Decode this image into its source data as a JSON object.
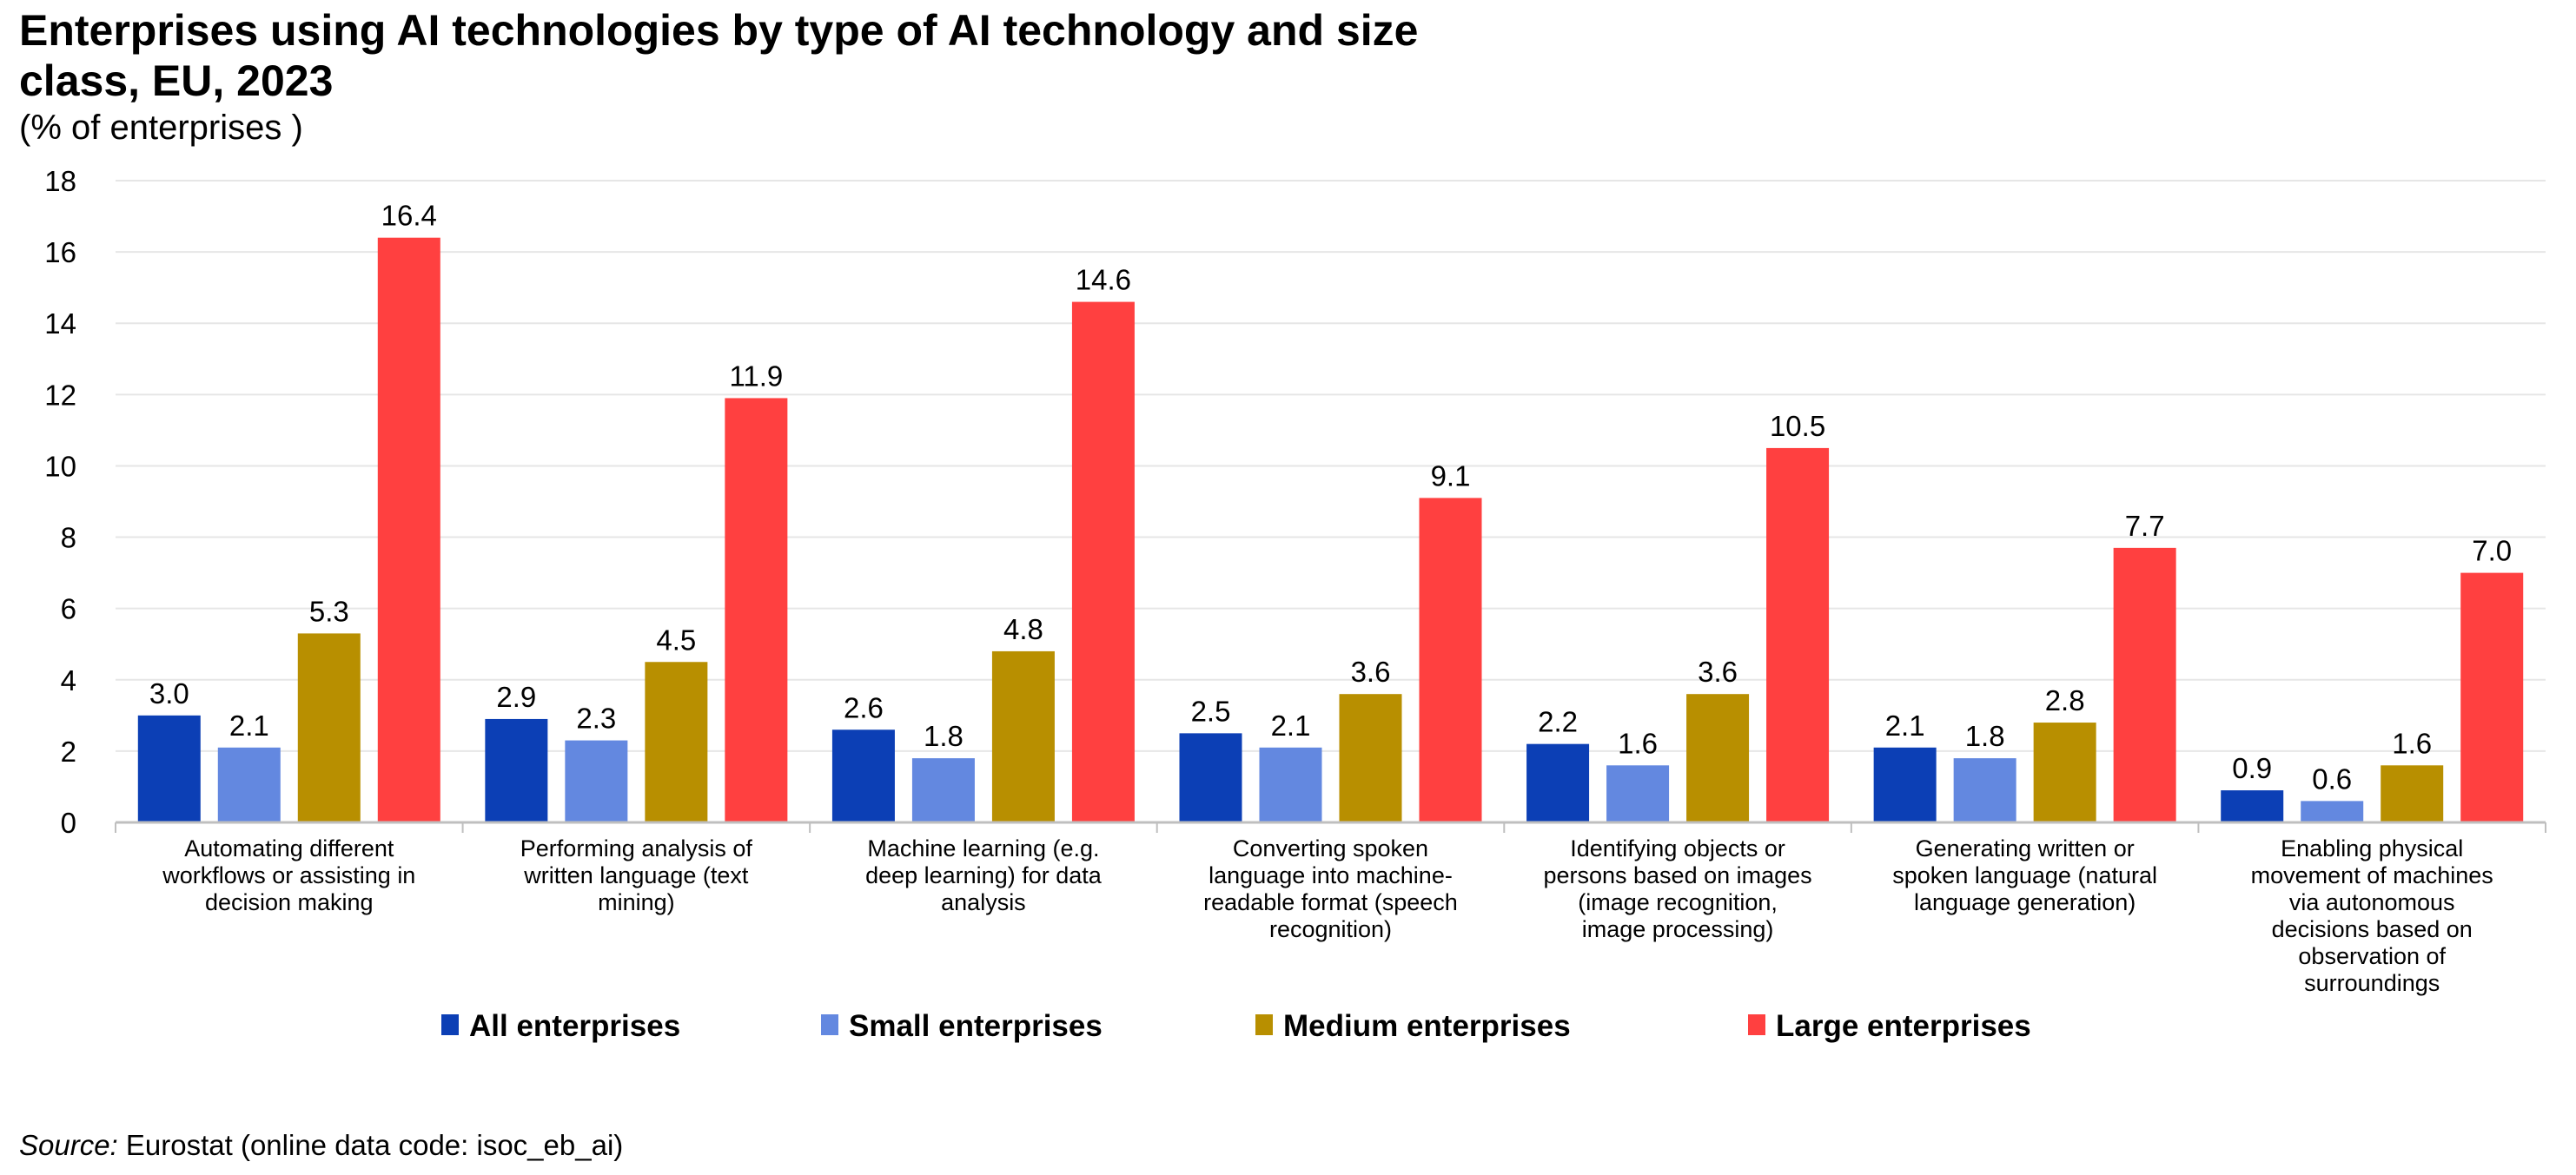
{
  "chart_data": {
    "type": "bar",
    "title_lines": [
      "Enterprises using AI technologies by type of AI technology and size",
      "class, EU, 2023"
    ],
    "subtitle": "(% of enterprises )",
    "xlabel": "",
    "ylabel": "",
    "ylim": [
      0,
      18
    ],
    "yticks": [
      0,
      2,
      4,
      6,
      8,
      10,
      12,
      14,
      16,
      18
    ],
    "grid": true,
    "legend_position": "bottom",
    "categories": [
      [
        "Automating different",
        "workflows or assisting in",
        "decision making"
      ],
      [
        "Performing analysis of",
        "written language (text",
        "mining)"
      ],
      [
        "Machine learning (e.g.",
        "deep learning) for data",
        "analysis"
      ],
      [
        "Converting spoken",
        "language into machine-",
        "readable format (speech",
        "recognition)"
      ],
      [
        "Identifying objects or",
        "persons based on images",
        "(image recognition,",
        "image processing)"
      ],
      [
        "Generating written or",
        "spoken language (natural",
        "language generation)"
      ],
      [
        "Enabling physical",
        "movement of machines",
        "via autonomous",
        "decisions based on",
        "observation of",
        "surroundings"
      ]
    ],
    "series": [
      {
        "name": "All enterprises",
        "color": "#0c3fb5",
        "values": [
          3.0,
          2.9,
          2.6,
          2.5,
          2.2,
          2.1,
          0.9
        ],
        "labels": [
          "3.0",
          "2.9",
          "2.6",
          "2.5",
          "2.2",
          "2.1",
          "0.9"
        ]
      },
      {
        "name": "Small enterprises",
        "color": "#6388e0",
        "values": [
          2.1,
          2.3,
          1.8,
          2.1,
          1.6,
          1.8,
          0.6
        ],
        "labels": [
          "2.1",
          "2.3",
          "1.8",
          "2.1",
          "1.6",
          "1.8",
          "0.6"
        ]
      },
      {
        "name": "Medium enterprises",
        "color": "#b88f00",
        "values": [
          5.3,
          4.5,
          4.8,
          3.6,
          3.6,
          2.8,
          1.6
        ],
        "labels": [
          "5.3",
          "4.5",
          "4.8",
          "3.6",
          "3.6",
          "2.8",
          "1.6"
        ]
      },
      {
        "name": "Large enterprises",
        "color": "#ff4040",
        "values": [
          16.4,
          11.9,
          14.6,
          9.1,
          10.5,
          7.7,
          7.0
        ],
        "labels": [
          "16.4",
          "11.9",
          "14.6",
          "9.1",
          "10.5",
          "7.7",
          "7.0"
        ]
      }
    ]
  },
  "source": {
    "label": "Source:",
    "text": " Eurostat (online data code: isoc_eb_ai)"
  }
}
